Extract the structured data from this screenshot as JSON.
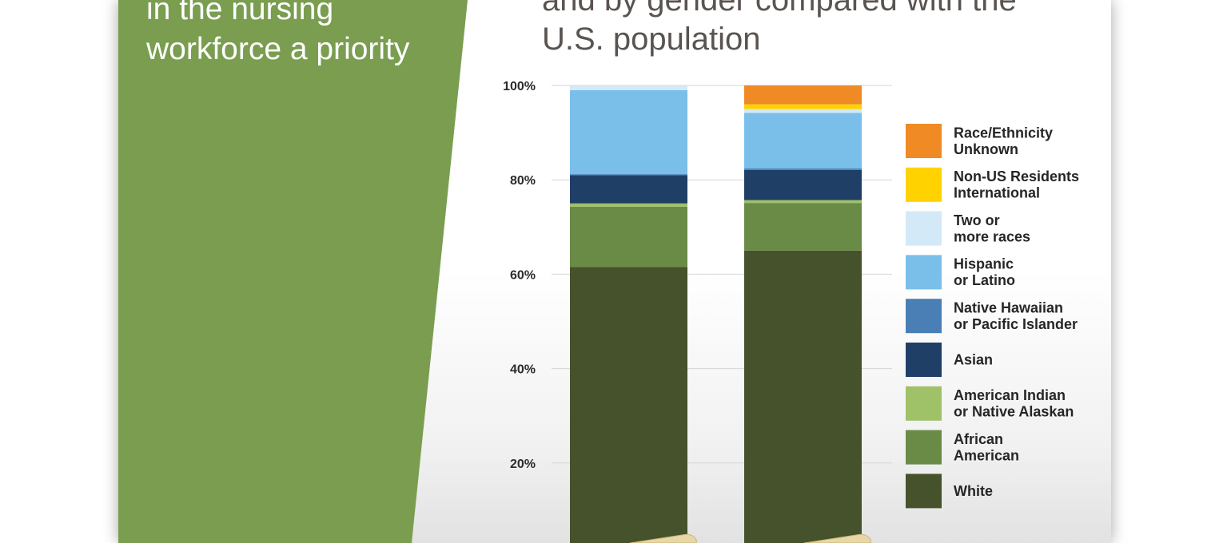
{
  "headline": {
    "lines": [
      "in the nursing",
      "workforce a priority"
    ]
  },
  "colors": {
    "panel_green": "#7a9d50",
    "title_text": "#5a5450"
  },
  "chart_data": {
    "type": "bar",
    "stacked": true,
    "title_lines": [
      "and by gender compared with the",
      "U.S. population"
    ],
    "xlabel": "",
    "ylabel": "",
    "ylim": [
      0,
      100
    ],
    "yticks": [
      20,
      40,
      60,
      80,
      100
    ],
    "ytick_labels": [
      "20%",
      "40%",
      "60%",
      "80%",
      "100%"
    ],
    "grid": true,
    "legend_position": "right",
    "categories": [
      "",
      ""
    ],
    "series": [
      {
        "name": "White",
        "color": "#45522c",
        "values": [
          61.5,
          65
        ]
      },
      {
        "name": "African American",
        "color": "#6a8b46",
        "values": [
          12.8,
          10.1
        ]
      },
      {
        "name": "American Indian or Native Alaskan",
        "color": "#9fc168",
        "values": [
          0.7,
          0.6
        ]
      },
      {
        "name": "Asian",
        "color": "#1f3f66",
        "values": [
          6.0,
          6.4
        ]
      },
      {
        "name": "Native Hawaiian or Pacific Islander",
        "color": "#4a7fb5",
        "values": [
          0.2,
          0.3
        ]
      },
      {
        "name": "Hispanic or Latino",
        "color": "#79bfea",
        "values": [
          17.8,
          11.8
        ]
      },
      {
        "name": "Two or more races",
        "color": "#d3e9f7",
        "values": [
          1.0,
          0.8
        ]
      },
      {
        "name": "Non-US Residents International",
        "color": "#ffd200",
        "values": [
          0,
          1.0
        ]
      },
      {
        "name": "Race/Ethnicity Unknown",
        "color": "#f08a24",
        "values": [
          0,
          4.0
        ]
      }
    ],
    "legend": [
      {
        "lines": [
          "Race/Ethnicity",
          "Unknown"
        ],
        "color": "#f08a24"
      },
      {
        "lines": [
          "Non-US Residents",
          "International"
        ],
        "color": "#ffd200"
      },
      {
        "lines": [
          "Two or",
          "more races"
        ],
        "color": "#d3e9f7"
      },
      {
        "lines": [
          "Hispanic",
          "or Latino"
        ],
        "color": "#79bfea"
      },
      {
        "lines": [
          "Native Hawaiian",
          "or Pacific Islander"
        ],
        "color": "#4a7fb5"
      },
      {
        "lines": [
          "Asian"
        ],
        "color": "#1f3f66"
      },
      {
        "lines": [
          "American Indian",
          "or Native Alaskan"
        ],
        "color": "#9fc168"
      },
      {
        "lines": [
          "African",
          "American"
        ],
        "color": "#6a8b46"
      },
      {
        "lines": [
          "White"
        ],
        "color": "#45522c"
      }
    ]
  }
}
